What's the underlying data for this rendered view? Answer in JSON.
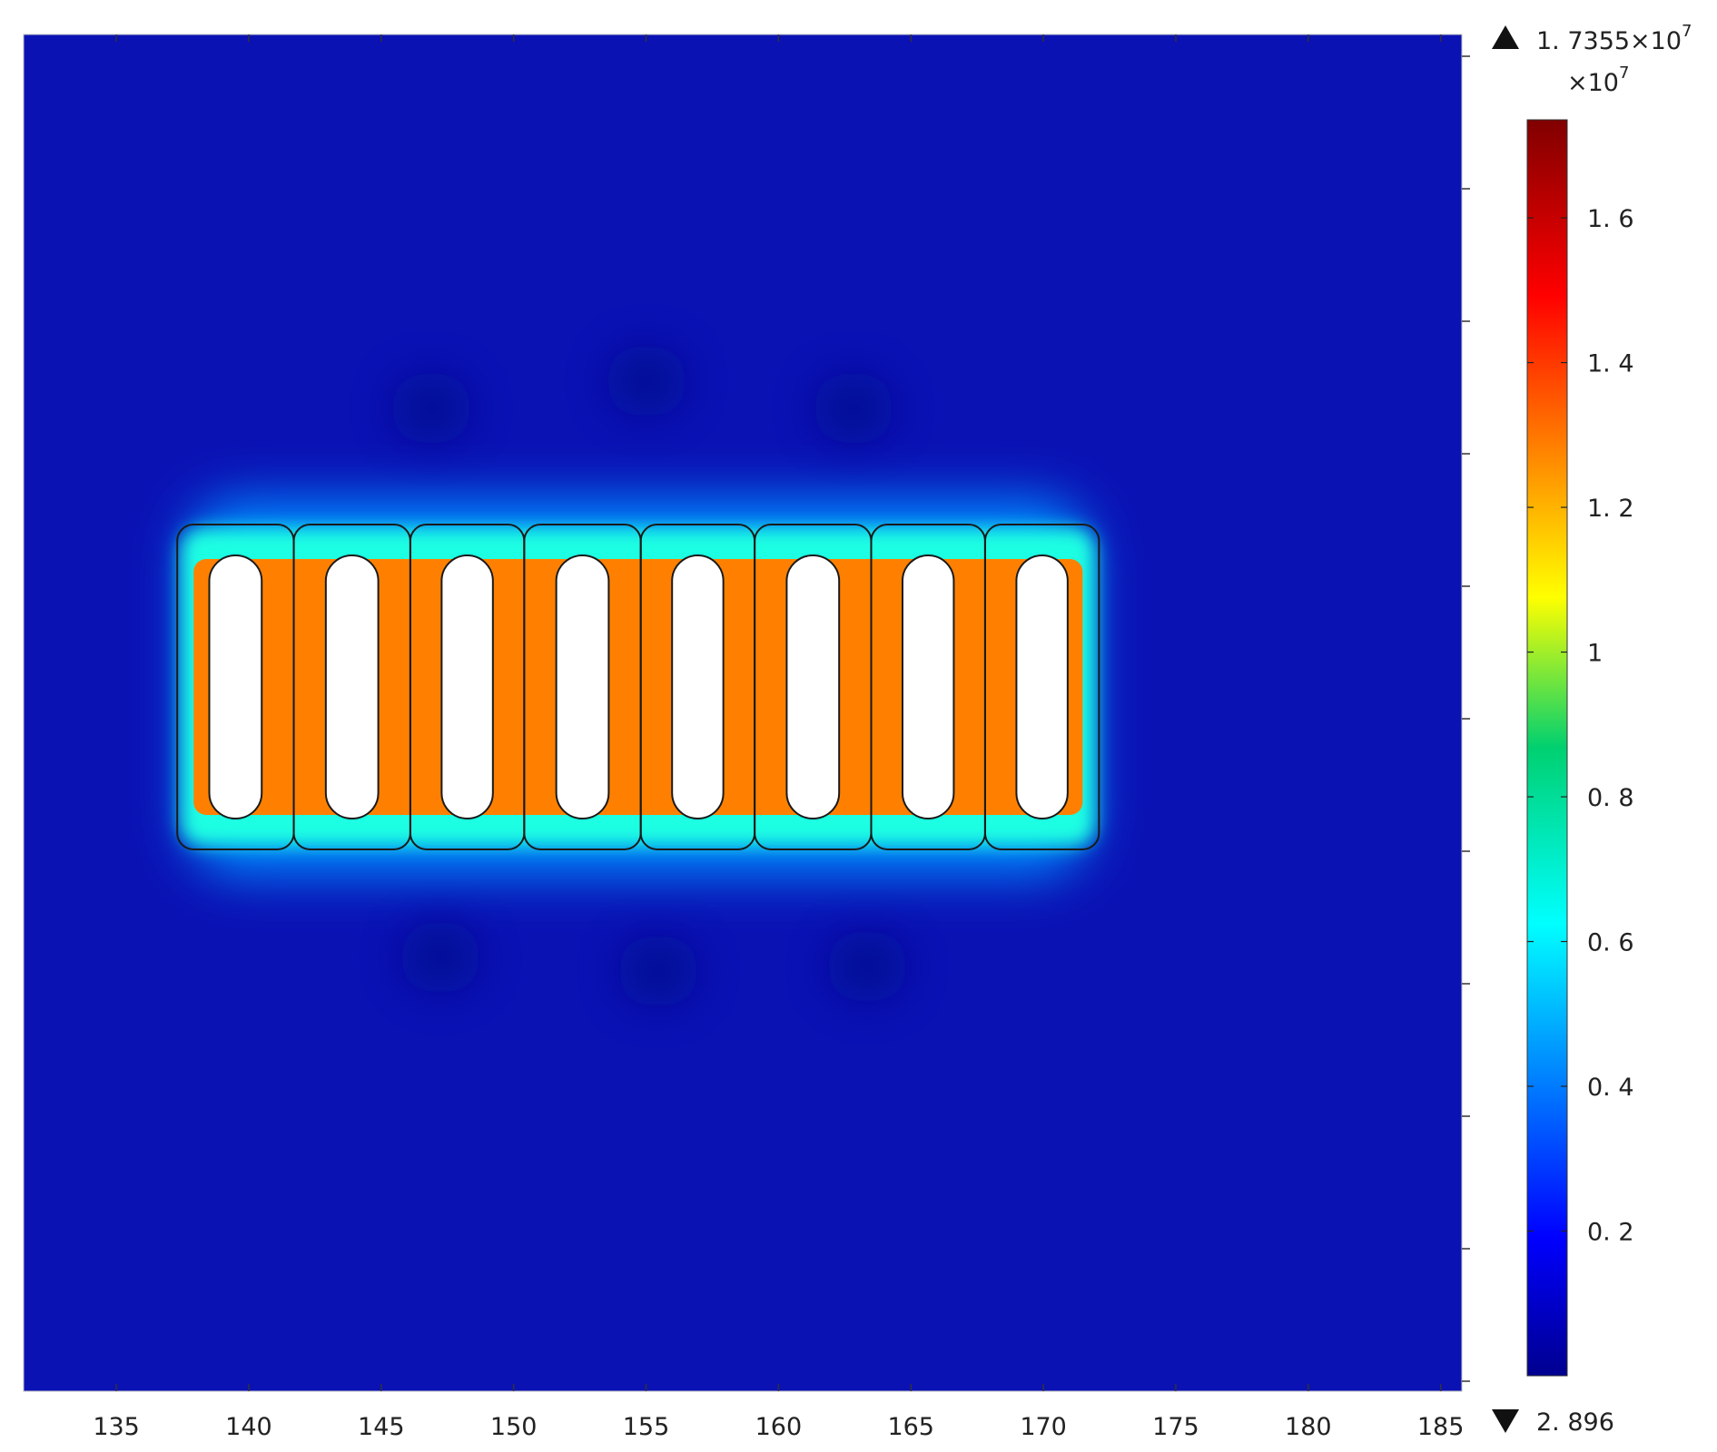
{
  "chart_data": {
    "type": "heatmap",
    "title": "",
    "xlabel": "",
    "ylabel": "",
    "x_ticks": [
      135,
      140,
      145,
      150,
      155,
      160,
      165,
      170,
      175,
      180,
      185
    ],
    "xlim": [
      131.5,
      185.8
    ],
    "grid": false,
    "colormap": "jet",
    "colorbar": {
      "max_value": 17355000,
      "max_label": "1. 7355×10",
      "max_exponent": "7",
      "multiplier_label": "×10",
      "multiplier_exponent": "7",
      "min_value": 2.896,
      "min_label": "2. 896",
      "ticks": [
        {
          "value": 0.2,
          "label": "0. 2"
        },
        {
          "value": 0.4,
          "label": "0. 4"
        },
        {
          "value": 0.6,
          "label": "0. 6"
        },
        {
          "value": 0.8,
          "label": "0. 8"
        },
        {
          "value": 1.0,
          "label": "1"
        },
        {
          "value": 1.2,
          "label": "1. 2"
        },
        {
          "value": 1.4,
          "label": "1. 4"
        },
        {
          "value": 1.6,
          "label": "1. 6"
        }
      ]
    },
    "field": {
      "background_level": 0.03,
      "cells": [
        {
          "x_start": 137.3,
          "x_end": 141.7
        },
        {
          "x_start": 141.7,
          "x_end": 146.1
        },
        {
          "x_start": 146.1,
          "x_end": 150.4
        },
        {
          "x_start": 150.4,
          "x_end": 154.8
        },
        {
          "x_start": 154.8,
          "x_end": 159.1
        },
        {
          "x_start": 159.1,
          "x_end": 163.5
        },
        {
          "x_start": 163.5,
          "x_end": 167.8
        },
        {
          "x_start": 167.8,
          "x_end": 172.1
        }
      ],
      "cell_level": 1.3,
      "edge_level": 0.7,
      "halo_level": 0.45
    }
  }
}
